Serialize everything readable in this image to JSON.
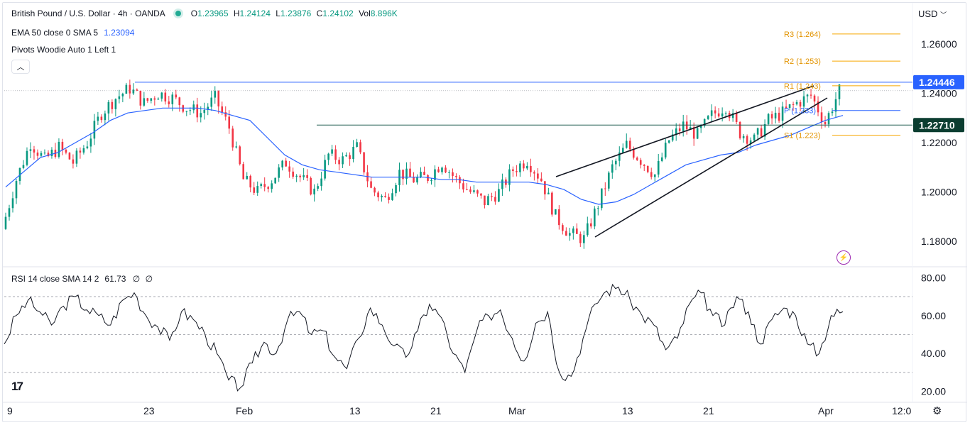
{
  "header": {
    "symbol": "British Pound / U.S. Dollar · 4h · OANDA",
    "ohlc": {
      "o_label": "O",
      "o": "1.23965",
      "h_label": "H",
      "h": "1.24124",
      "l_label": "L",
      "l": "1.23876",
      "c_label": "C",
      "c": "1.24102",
      "vol_label": "Vol",
      "vol": "8.896K"
    },
    "ema_label": "EMA 50 close 0 SMA 5",
    "ema_value": "1.23094",
    "pivots_label": "Pivots Woodie Auto 1 Left 1",
    "collapse_icon": "chevron-up-icon",
    "currency": "USD",
    "currency_icon": "chevron-down-icon"
  },
  "rsi_legend": {
    "label": "RSI 14 close SMA 14 2",
    "value": "61.73",
    "extra1": "∅",
    "extra2": "∅"
  },
  "colors": {
    "up": "#089981",
    "down": "#f23645",
    "ema": "#2962ff",
    "pivot": "#f7a600",
    "rsi": "#131722",
    "level_blue": "#2962ff",
    "level_green": "#1e5b4f"
  },
  "chart_data": [
    {
      "type": "candlestick",
      "ylim": [
        1.17,
        1.272
      ],
      "y_ticks": [
        "1.26000",
        "1.24000",
        "1.22000",
        "1.20000",
        "1.18000"
      ],
      "y_tick_values": [
        1.26,
        1.24,
        1.22,
        1.2,
        1.18
      ],
      "x_ticks": [
        "9",
        "23",
        "Feb",
        "13",
        "21",
        "Mar",
        "13",
        "21",
        "Apr",
        "12:0"
      ],
      "close_path": [
        1.185,
        1.205,
        1.22,
        1.213,
        1.218,
        1.212,
        1.22,
        1.232,
        1.238,
        1.242,
        1.236,
        1.24,
        1.238,
        1.234,
        1.232,
        1.238,
        1.226,
        1.205,
        1.2,
        1.205,
        1.212,
        1.206,
        1.2,
        1.215,
        1.213,
        1.218,
        1.201,
        1.197,
        1.208,
        1.205,
        1.206,
        1.212,
        1.205,
        1.2,
        1.196,
        1.2,
        1.209,
        1.213,
        1.205,
        1.19,
        1.183,
        1.181,
        1.195,
        1.21,
        1.219,
        1.213,
        1.207,
        1.221,
        1.227,
        1.223,
        1.231,
        1.235,
        1.224,
        1.221,
        1.229,
        1.232,
        1.236,
        1.239,
        1.228,
        1.241
      ],
      "ema_path": [
        1.202,
        1.208,
        1.214,
        1.216,
        1.22,
        1.224,
        1.229,
        1.232,
        1.233,
        1.234,
        1.234,
        1.234,
        1.233,
        1.231,
        1.229,
        1.222,
        1.215,
        1.211,
        1.209,
        1.208,
        1.207,
        1.206,
        1.206,
        1.206,
        1.206,
        1.205,
        1.205,
        1.204,
        1.204,
        1.204,
        1.204,
        1.203,
        1.201,
        1.197,
        1.195,
        1.196,
        1.199,
        1.203,
        1.207,
        1.211,
        1.213,
        1.215,
        1.216,
        1.219,
        1.221,
        1.223,
        1.226,
        1.229,
        1.231
      ],
      "pivots": [
        {
          "label": "R3 (1.264)",
          "value": 1.264
        },
        {
          "label": "R2 (1.253)",
          "value": 1.253
        },
        {
          "label": "R1 (1.243)",
          "value": 1.243
        },
        {
          "label": "P (1.233)",
          "value": 1.233
        },
        {
          "label": "S1 (1.223)",
          "value": 1.223
        }
      ],
      "levels": [
        {
          "label": "1.24446",
          "value": 1.24446
        },
        {
          "label": "1.22710",
          "value": 1.2271
        }
      ],
      "price_line": 1.24102
    },
    {
      "type": "line",
      "name": "RSI",
      "ylim": [
        15,
        85
      ],
      "y_ticks": [
        "80.00",
        "60.00",
        "40.00",
        "20.00"
      ],
      "y_tick_values": [
        80,
        60,
        40,
        20
      ],
      "bands": [
        70,
        50,
        30
      ],
      "values": [
        45,
        60,
        68,
        62,
        55,
        65,
        70,
        63,
        60,
        55,
        68,
        72,
        60,
        54,
        47,
        62,
        58,
        50,
        40,
        26,
        22,
        35,
        46,
        40,
        58,
        62,
        50,
        52,
        38,
        32,
        48,
        64,
        55,
        44,
        38,
        52,
        66,
        59,
        40,
        30,
        52,
        60,
        63,
        48,
        36,
        56,
        62,
        30,
        28,
        48,
        66,
        73,
        75,
        68,
        60,
        55,
        42,
        48,
        66,
        72,
        60,
        55,
        70,
        62,
        45,
        58,
        64,
        60,
        45,
        40,
        60,
        62
      ]
    }
  ]
}
